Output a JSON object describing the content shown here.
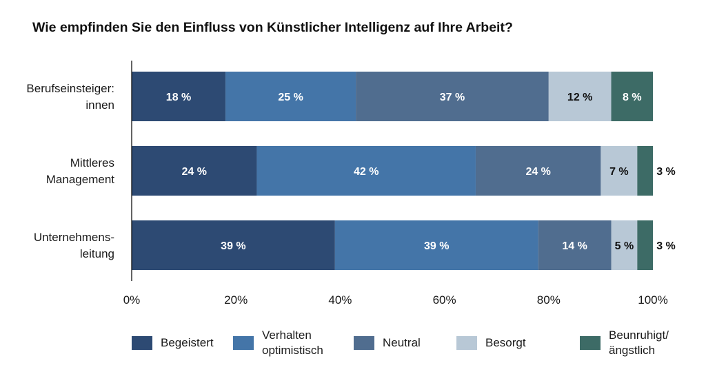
{
  "chart_data": {
    "type": "bar",
    "orientation": "horizontal",
    "stacked": true,
    "title": "Wie empfinden Sie den Einfluss von Künstlicher Intelligenz auf Ihre Arbeit?",
    "categories": [
      "Berufseinsteiger:\ninnen",
      "Mittleres\nManagement",
      "Unternehmens-\nleitung"
    ],
    "series": [
      {
        "name": "Begeistert",
        "color": "#2d4a73",
        "label_color": "#ffffff",
        "values": [
          18,
          24,
          39
        ]
      },
      {
        "name": "Verhalten\noptimistisch",
        "color": "#4475a8",
        "label_color": "#ffffff",
        "values": [
          25,
          42,
          39
        ]
      },
      {
        "name": "Neutral",
        "color": "#506d8f",
        "label_color": "#ffffff",
        "values": [
          37,
          24,
          14
        ]
      },
      {
        "name": "Besorgt",
        "color": "#b8c8d6",
        "label_color": "#111111",
        "values": [
          12,
          7,
          5
        ]
      },
      {
        "name": "Beunruhigt/\nängstlich",
        "color": "#3d6b66",
        "label_color": "#ffffff",
        "values": [
          8,
          3,
          3
        ]
      }
    ],
    "value_suffix": " %",
    "xlim": [
      0,
      100
    ],
    "xticks": [
      "0%",
      "20%",
      "40%",
      "60%",
      "80%",
      "100%"
    ],
    "grid": false,
    "legend_position": "bottom"
  }
}
